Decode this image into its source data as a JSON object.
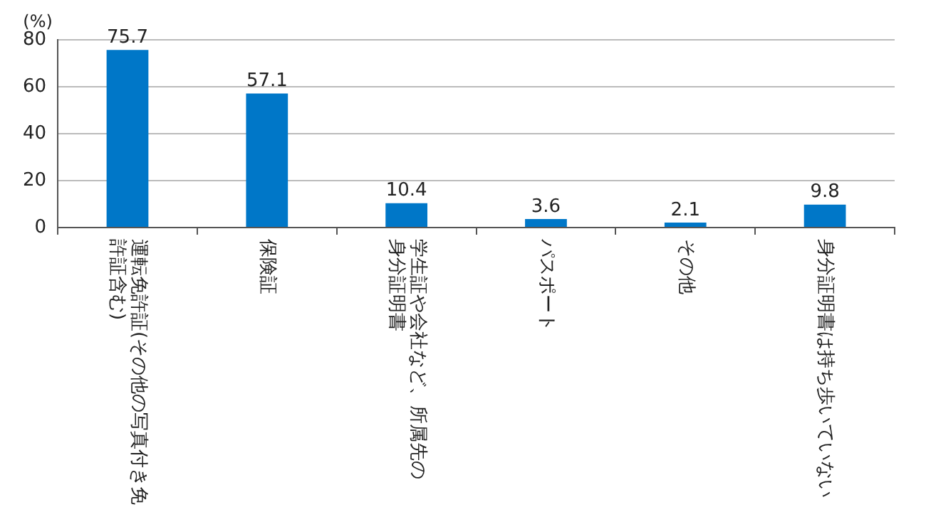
{
  "chart_data": {
    "type": "bar",
    "ylabel": "(%)",
    "categories": [
      "運転免許証(その他の写真付き免許証含む)",
      "保険証",
      "学生証や会社など、所属先の身分証明書",
      "パスポート",
      "その他",
      "身分証明書は持ち歩いていない"
    ],
    "values": [
      75.7,
      57.1,
      10.4,
      3.6,
      2.1,
      9.8
    ],
    "color": "#0077c8",
    "ylim": [
      0,
      80
    ],
    "yticks": [
      0,
      20,
      40,
      60,
      80
    ],
    "grid": "y",
    "legend": false,
    "data_labels": true
  }
}
